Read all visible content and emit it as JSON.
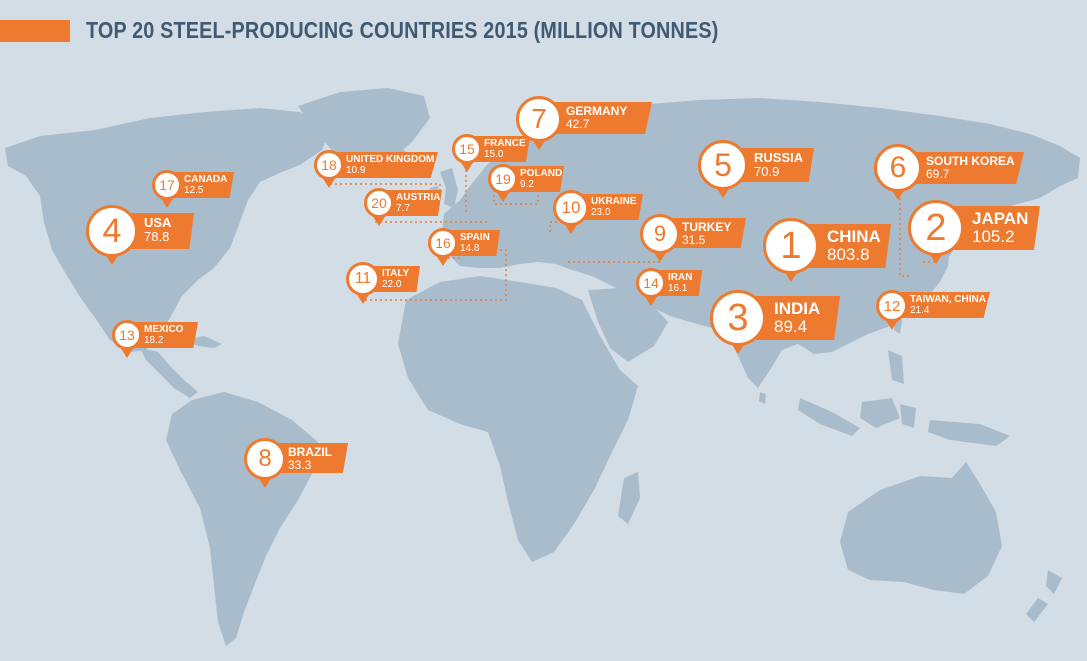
{
  "title": "TOP 20 STEEL-PRODUCING COUNTRIES 2015 (MILLION TONNES)",
  "colors": {
    "accent": "#ee7a2f",
    "land": "#a9bccb",
    "sea": "#d3dde6",
    "title": "#3f5a72"
  },
  "countries": [
    {
      "rank": "1",
      "country": "CHINA",
      "value": "803.8"
    },
    {
      "rank": "2",
      "country": "JAPAN",
      "value": "105.2"
    },
    {
      "rank": "3",
      "country": "INDIA",
      "value": "89.4"
    },
    {
      "rank": "4",
      "country": "USA",
      "value": "78.8"
    },
    {
      "rank": "5",
      "country": "RUSSIA",
      "value": "70.9"
    },
    {
      "rank": "6",
      "country": "SOUTH KOREA",
      "value": "69.7"
    },
    {
      "rank": "7",
      "country": "GERMANY",
      "value": "42.7"
    },
    {
      "rank": "8",
      "country": "BRAZIL",
      "value": "33.3"
    },
    {
      "rank": "9",
      "country": "TURKEY",
      "value": "31.5"
    },
    {
      "rank": "10",
      "country": "UKRAINE",
      "value": "23.0"
    },
    {
      "rank": "11",
      "country": "ITALY",
      "value": "22.0"
    },
    {
      "rank": "12",
      "country": "TAIWAN, CHINA",
      "value": "21.4"
    },
    {
      "rank": "13",
      "country": "MEXICO",
      "value": "18.2"
    },
    {
      "rank": "14",
      "country": "IRAN",
      "value": "16.1"
    },
    {
      "rank": "15",
      "country": "FRANCE",
      "value": "15.0"
    },
    {
      "rank": "16",
      "country": "SPAIN",
      "value": "14.8"
    },
    {
      "rank": "17",
      "country": "CANADA",
      "value": "12.5"
    },
    {
      "rank": "18",
      "country": "UNITED KINGDOM",
      "value": "10.9"
    },
    {
      "rank": "19",
      "country": "POLAND",
      "value": "9.2"
    },
    {
      "rank": "20",
      "country": "AUSTRIA",
      "value": "7.7"
    }
  ]
}
